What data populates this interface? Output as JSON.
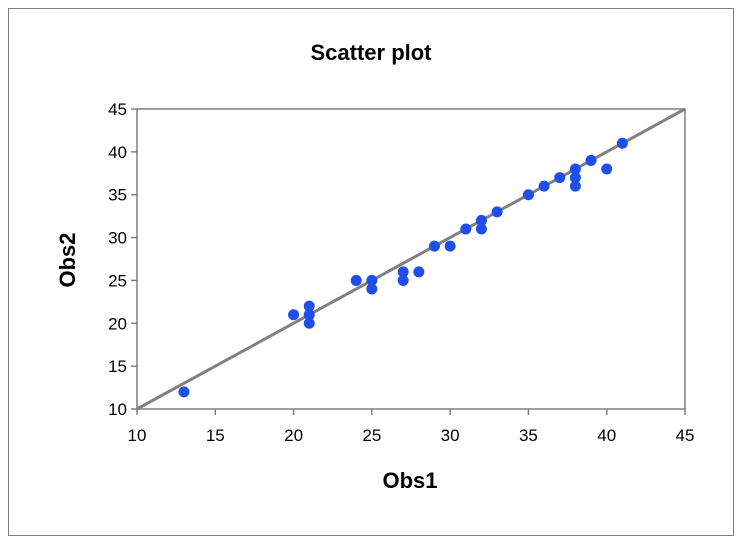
{
  "chart_data": {
    "type": "scatter",
    "title": "Scatter plot",
    "xlabel": "Obs1",
    "ylabel": "Obs2",
    "xlim": [
      10,
      45
    ],
    "ylim": [
      10,
      45
    ],
    "xticks": [
      10,
      15,
      20,
      25,
      30,
      35,
      40,
      45
    ],
    "yticks": [
      10,
      15,
      20,
      25,
      30,
      35,
      40,
      45
    ],
    "grid": false,
    "reference_line": {
      "from": [
        10,
        10
      ],
      "to": [
        45,
        45
      ],
      "color": "#808080"
    },
    "point_color": "#1f4ee8",
    "points": [
      [
        13,
        12
      ],
      [
        20,
        21
      ],
      [
        21,
        22
      ],
      [
        21,
        21
      ],
      [
        21,
        20
      ],
      [
        24,
        25
      ],
      [
        25,
        25
      ],
      [
        25,
        24
      ],
      [
        27,
        26
      ],
      [
        27,
        25
      ],
      [
        28,
        26
      ],
      [
        29,
        29
      ],
      [
        30,
        29
      ],
      [
        31,
        31
      ],
      [
        32,
        32
      ],
      [
        32,
        31
      ],
      [
        33,
        33
      ],
      [
        35,
        35
      ],
      [
        36,
        36
      ],
      [
        37,
        37
      ],
      [
        38,
        38
      ],
      [
        38,
        37
      ],
      [
        38,
        36
      ],
      [
        39,
        39
      ],
      [
        40,
        38
      ],
      [
        41,
        41
      ]
    ]
  }
}
